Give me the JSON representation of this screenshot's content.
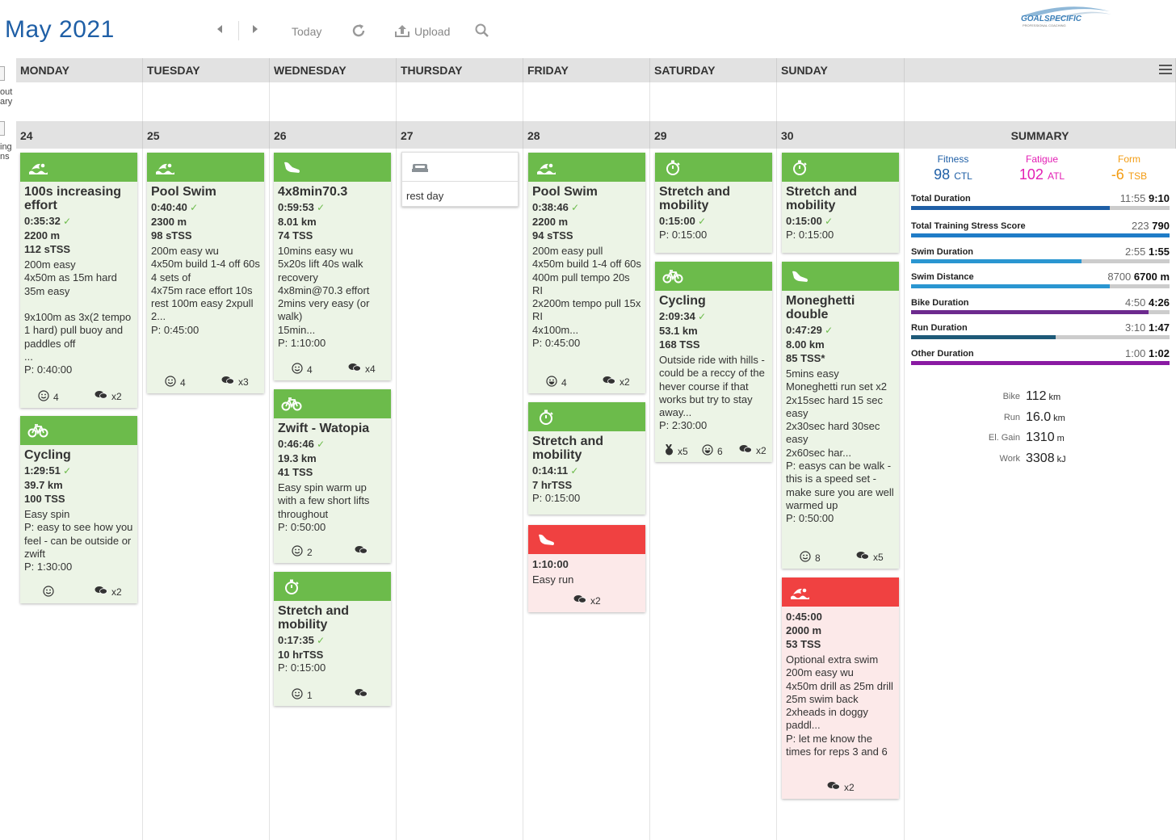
{
  "header": {
    "month": "May",
    "year": "2021",
    "today_label": "Today",
    "upload_label": "Upload",
    "logo_text": "GOALSPECIFIC",
    "logo_sub": "PROFESSIONAL COACHING"
  },
  "sidebar_stub": {
    "item1": [
      "out",
      "ary"
    ],
    "item2": [
      "ing",
      "ns"
    ]
  },
  "weekdays": [
    "MONDAY",
    "TUESDAY",
    "WEDNESDAY",
    "THURSDAY",
    "FRIDAY",
    "SATURDAY",
    "SUNDAY"
  ],
  "dates": [
    "24",
    "25",
    "26",
    "27",
    "28",
    "29",
    "30"
  ],
  "summary": {
    "title": "SUMMARY",
    "metrics": [
      {
        "label": "Fitness",
        "value": "98",
        "unit": "CTL",
        "color": "#1f5fa6"
      },
      {
        "label": "Fatigue",
        "value": "102",
        "unit": "ATL",
        "color": "#e31fb4"
      },
      {
        "label": "Form",
        "value": "-6",
        "unit": "TSB",
        "color": "#f39c12"
      }
    ],
    "bars": [
      {
        "label": "Total Duration",
        "planned": "11:55",
        "completed": "9:10",
        "ratio": 0.77,
        "color": "#1f5fa6"
      },
      {
        "label": "Total Training Stress Score",
        "planned": "223",
        "completed": "790",
        "ratio": 1.0,
        "color": "#1f7cc7"
      },
      {
        "label": "Swim Duration",
        "planned": "2:55",
        "completed": "1:55",
        "ratio": 0.66,
        "color": "#2a96d1"
      },
      {
        "label": "Swim Distance",
        "planned": "8700",
        "completed": "6700 m",
        "ratio": 0.77,
        "color": "#2a96d1"
      },
      {
        "label": "Bike Duration",
        "planned": "4:50",
        "completed": "4:26",
        "ratio": 0.92,
        "color": "#6d2a8e"
      },
      {
        "label": "Run Duration",
        "planned": "3:10",
        "completed": "1:47",
        "ratio": 0.56,
        "color": "#1e5a78"
      },
      {
        "label": "Other Duration",
        "planned": "1:00",
        "completed": "1:02",
        "ratio": 1.0,
        "color": "#8a1aa3"
      }
    ],
    "totals": [
      {
        "label": "Bike",
        "value": "112",
        "unit": "km"
      },
      {
        "label": "Run",
        "value": "16.0",
        "unit": "km"
      },
      {
        "label": "El. Gain",
        "value": "1310",
        "unit": "m"
      },
      {
        "label": "Work",
        "value": "3308",
        "unit": "kJ"
      }
    ]
  },
  "cards": [
    {
      "id": "mon1",
      "icon": "swim-icon",
      "status": "done",
      "title": "100s increasing effort",
      "duration": "0:35:32",
      "check": true,
      "lines": [
        "2200 m",
        "112 sTSS"
      ],
      "desc": "200m easy\n4x50m as 15m hard 35m easy\n\n9x100m as 3x(2 tempo 1 hard) pull buoy and paddles off\n...",
      "plan": "P: 0:40:00",
      "foot": [
        {
          "icon": "smile-icon",
          "text": "4",
          "left": 22
        },
        {
          "icon": "comment-icon",
          "text": "x2",
          "left": 92
        }
      ]
    },
    {
      "id": "mon2",
      "icon": "bike-icon",
      "status": "done",
      "title": "Cycling",
      "duration": "1:29:51",
      "check": true,
      "lines": [
        "39.7 km",
        "100 TSS"
      ],
      "desc": "Easy spin\nP: easy to see how you feel - can be outside or zwift",
      "plan": "P: 1:30:00",
      "foot": [
        {
          "icon": "smile-icon",
          "text": "",
          "left": 28
        },
        {
          "icon": "comment-icon",
          "text": "x2",
          "left": 92
        }
      ]
    },
    {
      "id": "tue1",
      "icon": "swim-icon",
      "status": "done",
      "title": "Pool Swim",
      "duration": "0:40:40",
      "check": true,
      "lines": [
        "2300 m",
        "98 sTSS"
      ],
      "desc": "200m easy wu\n4x50m build 1-4 off 60s\n4 sets of\n4x75m race effort 10s rest 100m easy 2xpull\n2...",
      "plan": "P: 0:45:00",
      "foot": [
        {
          "icon": "smile-icon",
          "text": "4",
          "left": 22
        },
        {
          "icon": "comment-icon",
          "text": "x3",
          "left": 92
        }
      ]
    },
    {
      "id": "wed1",
      "icon": "run-icon",
      "status": "done",
      "title": "4x8min70.3",
      "duration": "0:59:53",
      "check": true,
      "lines": [
        "8.01 km",
        "74 TSS"
      ],
      "desc": "10mins easy wu\n5x20s lift 40s walk recovery\n4x8min@70.3 effort\n2mins very easy (or walk)\n15min...",
      "plan": "P: 1:10:00",
      "foot": [
        {
          "icon": "smile-icon",
          "text": "4",
          "left": 22
        },
        {
          "icon": "comment-icon",
          "text": "x4",
          "left": 92
        }
      ]
    },
    {
      "id": "wed2",
      "icon": "bike-icon",
      "status": "done",
      "title": "Zwift - Watopia",
      "duration": "0:46:46",
      "check": true,
      "lines": [
        "19.3 km",
        "41 TSS"
      ],
      "desc": "Easy spin warm up with a few short lifts throughout",
      "plan": "P: 0:50:00",
      "foot": [
        {
          "icon": "smile-icon",
          "text": "2",
          "left": 22
        },
        {
          "icon": "comment-icon",
          "text": "",
          "left": 100
        }
      ]
    },
    {
      "id": "wed3",
      "icon": "stopwatch-icon",
      "status": "done",
      "title": "Stretch and mobility",
      "duration": "0:17:35",
      "check": true,
      "lines": [
        "10 hrTSS"
      ],
      "desc": "",
      "plan": "P: 0:15:00",
      "foot": [
        {
          "icon": "smile-icon",
          "text": "1",
          "left": 22
        },
        {
          "icon": "comment-icon",
          "text": "",
          "left": 100
        }
      ]
    },
    {
      "id": "thu1",
      "icon": "bed-icon",
      "status": "rest",
      "title": "",
      "duration": "",
      "check": false,
      "lines": [],
      "desc": "rest day",
      "plan": "",
      "foot": []
    },
    {
      "id": "fri1",
      "icon": "swim-icon",
      "status": "done",
      "title": "Pool Swim",
      "duration": "0:38:46",
      "check": true,
      "lines": [
        "2200 m",
        "94 sTSS"
      ],
      "desc": "200m easy pull\n4x50m build 1-4 off 60s\n400m pull tempo 20s RI\n2x200m tempo pull 15x RI\n4x100m...",
      "plan": "P: 0:45:00",
      "foot": [
        {
          "icon": "grin-icon",
          "text": "4",
          "left": 22
        },
        {
          "icon": "comment-icon",
          "text": "x2",
          "left": 92
        }
      ]
    },
    {
      "id": "fri2",
      "icon": "stopwatch-icon",
      "status": "done",
      "title": "Stretch and mobility",
      "duration": "0:14:11",
      "check": true,
      "lines": [
        "7 hrTSS"
      ],
      "desc": "",
      "plan": "P: 0:15:00",
      "foot": []
    },
    {
      "id": "fri3",
      "icon": "run-icon",
      "status": "missed",
      "title": "",
      "duration": "1:10:00",
      "check": false,
      "lines": [],
      "desc": "Easy run",
      "plan": "",
      "foot": [
        {
          "icon": "comment-icon",
          "text": "x2",
          "left": 56
        }
      ]
    },
    {
      "id": "sat1",
      "icon": "stopwatch-icon",
      "status": "done",
      "title": "Stretch and mobility",
      "duration": "0:15:00",
      "check": true,
      "lines": [],
      "desc": "",
      "plan": "P: 0:15:00",
      "foot": []
    },
    {
      "id": "sat2",
      "icon": "bike-icon",
      "status": "done",
      "title": "Cycling",
      "duration": "2:09:34",
      "check": true,
      "lines": [
        "53.1 km",
        "168 TSS"
      ],
      "desc": "Outside ride with hills - could be a reccy of the hever course if that works but try to stay away...",
      "plan": "P: 2:30:00",
      "foot": [
        {
          "icon": "medal-icon",
          "text": "x5",
          "left": 12
        },
        {
          "icon": "grin-icon",
          "text": "6",
          "left": 58
        },
        {
          "icon": "comment-icon",
          "text": "x2",
          "left": 104
        }
      ]
    },
    {
      "id": "sun1",
      "icon": "stopwatch-icon",
      "status": "done",
      "title": "Stretch and mobility",
      "duration": "0:15:00",
      "check": true,
      "lines": [],
      "desc": "",
      "plan": "P: 0:15:00",
      "foot": []
    },
    {
      "id": "sun2",
      "icon": "run-icon",
      "status": "done",
      "title": "Moneghetti double",
      "duration": "0:47:29",
      "check": true,
      "lines": [
        "8.00 km",
        "85 TSS*"
      ],
      "desc": "5mins easy\nMoneghetti run set x2\n2x15sec hard 15 sec easy\n2x30sec hard 30sec easy\n2x60sec har...\nP: easys can be walk - this is a speed set - make sure you are well warmed up",
      "plan": "P: 0:50:00",
      "foot": [
        {
          "icon": "smile-icon",
          "text": "8",
          "left": 22
        },
        {
          "icon": "comment-icon",
          "text": "x5",
          "left": 92
        }
      ]
    },
    {
      "id": "sun3",
      "icon": "swim-icon",
      "status": "missed",
      "title": "",
      "duration": "0:45:00",
      "check": false,
      "lines": [
        "2000 m",
        "53 TSS"
      ],
      "desc": "Optional extra swim\n200m easy wu\n4x50m drill as 25m drill 25m swim back\n2xheads in doggy paddl...\nP: let me know the times for reps 3 and 6",
      "plan": "",
      "foot": [
        {
          "icon": "comment-icon",
          "text": "x2",
          "left": 56
        }
      ]
    }
  ]
}
